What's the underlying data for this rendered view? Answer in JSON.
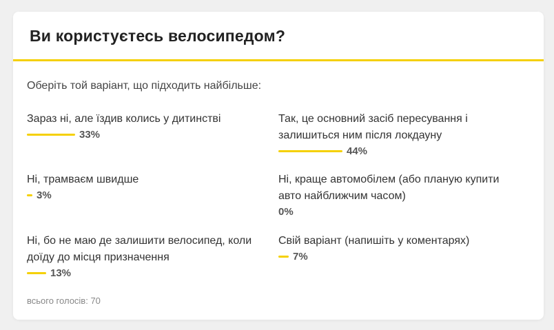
{
  "poll": {
    "title": "Ви користуєтесь велосипедом?",
    "instruction": "Оберіть той варіант, що підходить найбільше:",
    "options": [
      {
        "label": "Зараз ні, але їздив колись у дитинстві",
        "percent": 33,
        "percent_label": "33%"
      },
      {
        "label": "Так, це основний засіб пересування і залишиться ним після локдауну",
        "percent": 44,
        "percent_label": "44%"
      },
      {
        "label": "Ні, трамваєм швидше",
        "percent": 3,
        "percent_label": "3%"
      },
      {
        "label": "Ні, краще автомобілем (або планую купити авто найближчим часом)",
        "percent": 0,
        "percent_label": "0%"
      },
      {
        "label": "Ні, бо не маю де залишити велосипед, коли доїду до місця призначення",
        "percent": 13,
        "percent_label": "13%"
      },
      {
        "label": "Свій варіант (напишіть у коментарях)",
        "percent": 7,
        "percent_label": "7%"
      }
    ],
    "total_votes": "всього голосів: 70"
  },
  "colors": {
    "accent": "#f5d000",
    "background": "#f0f0f0",
    "card": "#ffffff"
  }
}
